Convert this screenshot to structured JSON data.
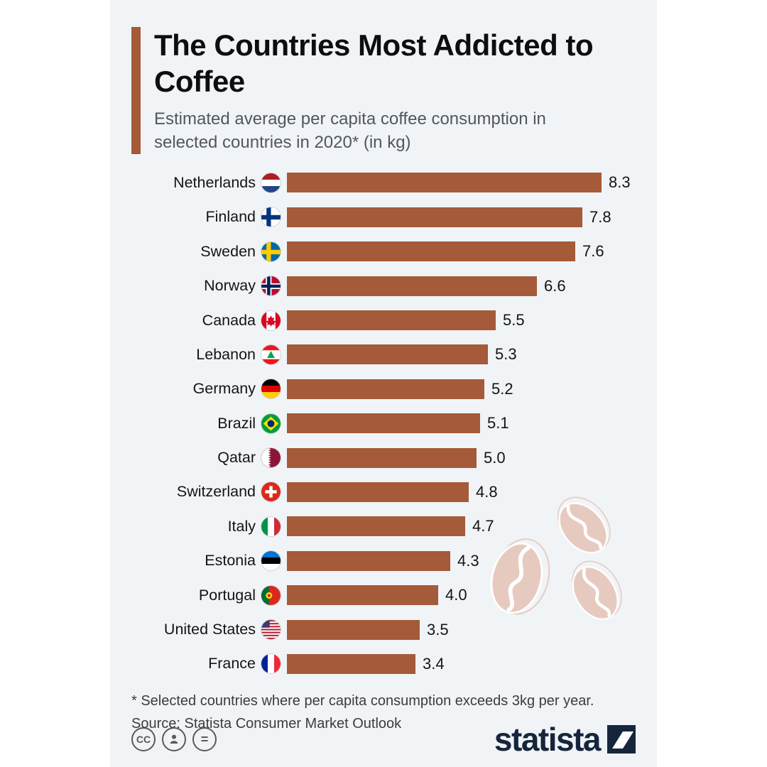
{
  "palette": {
    "bar_color": "#a55a39",
    "accent_color": "#a55a39",
    "card_background": "#f1f4f7",
    "page_background": "#ffffff",
    "brand_color": "#15263c",
    "subtitle_color": "#52575d"
  },
  "header": {
    "title": "The Countries Most Addicted to Coffee",
    "subtitle": "Estimated average per capita coffee consumption in selected countries in 2020* (in kg)"
  },
  "chart_data": {
    "type": "bar",
    "orientation": "horizontal",
    "unit": "kg",
    "title": "The Countries Most Addicted to Coffee",
    "subtitle": "Estimated average per capita coffee consumption in selected countries in 2020* (in kg)",
    "xlim": [
      0,
      9
    ],
    "grid": false,
    "legend": false,
    "categories": [
      "Netherlands",
      "Finland",
      "Sweden",
      "Norway",
      "Canada",
      "Lebanon",
      "Germany",
      "Brazil",
      "Qatar",
      "Switzerland",
      "Italy",
      "Estonia",
      "Portugal",
      "United States",
      "France"
    ],
    "values": [
      8.3,
      7.8,
      7.6,
      6.6,
      5.5,
      5.3,
      5.2,
      5.1,
      5.0,
      4.8,
      4.7,
      4.3,
      4.0,
      3.5,
      3.4
    ],
    "flags": [
      "nl",
      "fi",
      "se",
      "no",
      "ca",
      "lb",
      "de",
      "br",
      "qa",
      "ch",
      "it",
      "ee",
      "pt",
      "us",
      "fr"
    ]
  },
  "footer": {
    "note": "* Selected countries where per capita consumption exceeds 3kg per year.",
    "source": "Source: Statista Consumer Market Outlook",
    "brand": "statista",
    "license_icons": [
      "cc-icon",
      "attribution-person-icon",
      "nd-equal-icon"
    ]
  }
}
